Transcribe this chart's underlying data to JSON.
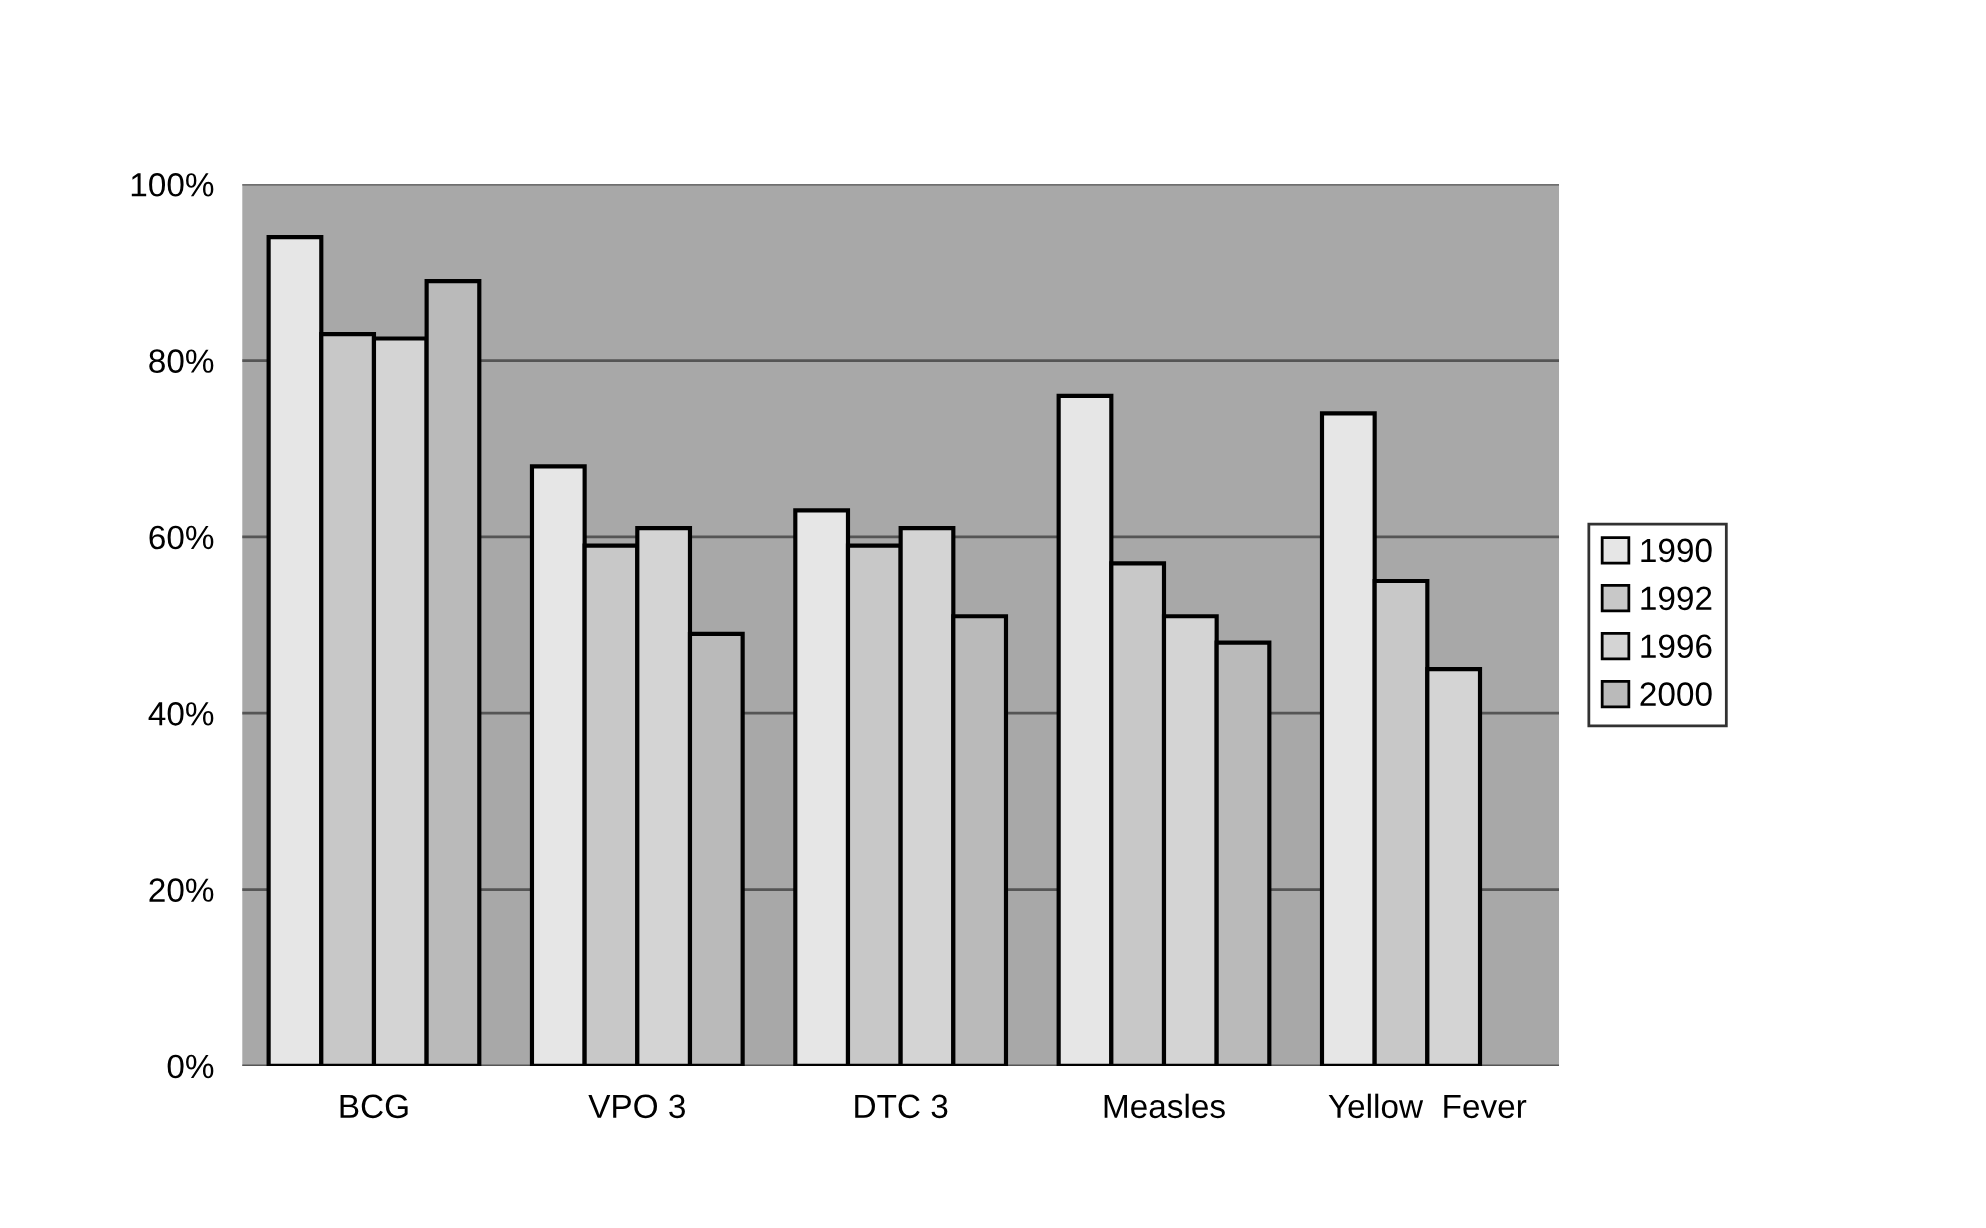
{
  "chart_data": {
    "type": "bar",
    "categories": [
      "BCG",
      "VPO 3",
      "DTC 3",
      "Measles",
      "Yellow  Fever"
    ],
    "series": [
      {
        "name": "1990",
        "color": "#e6e6e6",
        "values": [
          94,
          68,
          63,
          76,
          74
        ]
      },
      {
        "name": "1992",
        "color": "#c8c8c8",
        "values": [
          83,
          59,
          59,
          57,
          55
        ]
      },
      {
        "name": "1996",
        "color": "#d4d4d4",
        "values": [
          82.5,
          61,
          61,
          51,
          45
        ]
      },
      {
        "name": "2000",
        "color": "#bababa",
        "values": [
          89,
          49,
          51,
          48,
          null
        ]
      }
    ],
    "ylim": [
      0,
      100
    ],
    "yticks": [
      {
        "value": 0,
        "label": "0%"
      },
      {
        "value": 20,
        "label": "20%"
      },
      {
        "value": 40,
        "label": "40%"
      },
      {
        "value": 60,
        "label": "60%"
      },
      {
        "value": 80,
        "label": "80%"
      },
      {
        "value": 100,
        "label": "100%"
      }
    ],
    "grid": "y",
    "legend": "right"
  }
}
